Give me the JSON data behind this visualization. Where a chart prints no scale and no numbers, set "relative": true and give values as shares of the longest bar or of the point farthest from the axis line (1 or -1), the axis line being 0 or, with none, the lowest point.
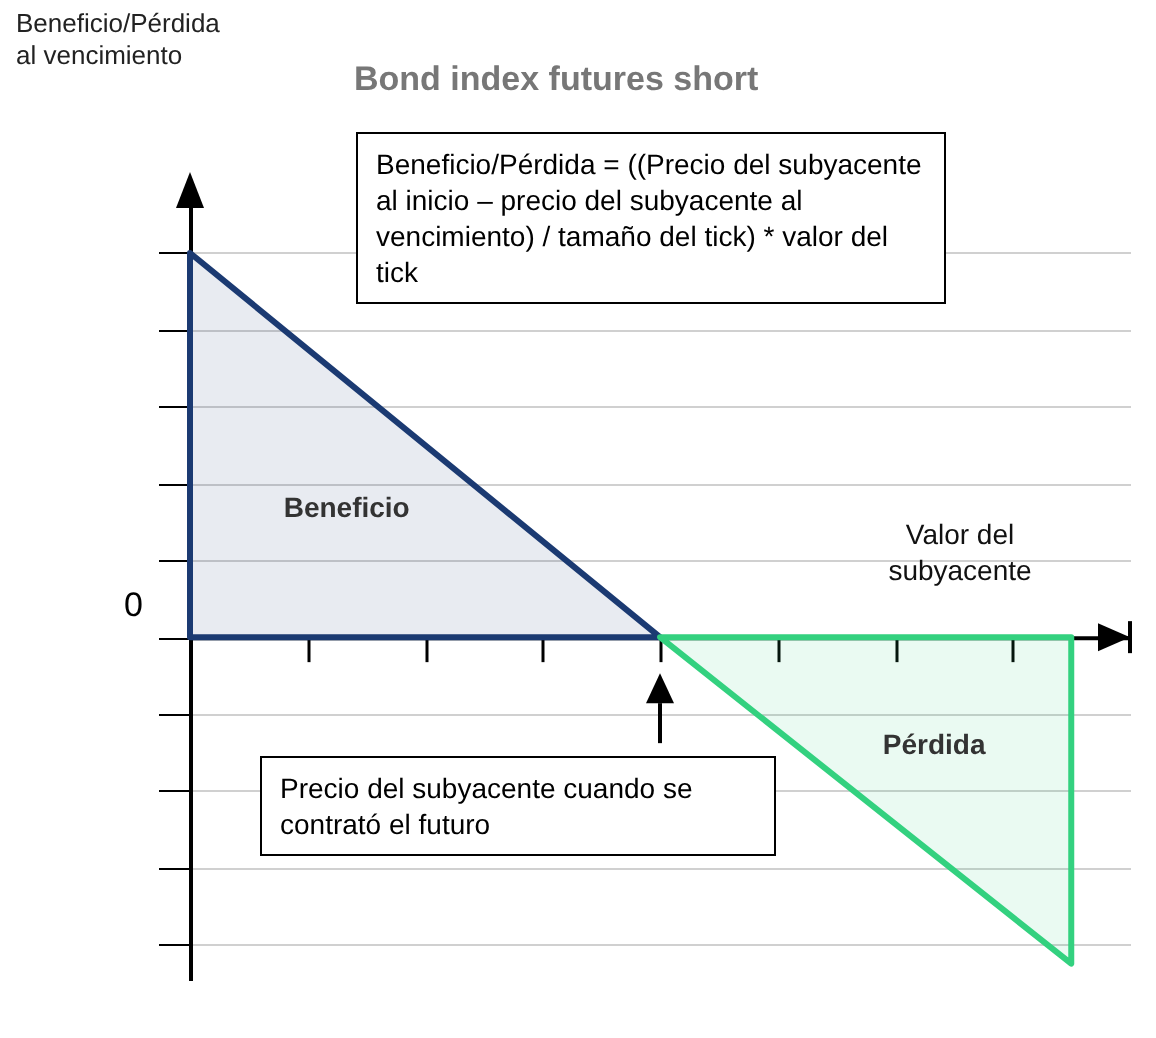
{
  "chart_data": {
    "type": "area",
    "title": "Bond index futures short",
    "xlabel": "Valor del subyacente",
    "relative": true,
    "grid": "y",
    "categories": [
      null,
      null,
      null,
      null,
      null,
      null,
      null,
      null,
      null,
      null,
      null,
      null,
      null,
      null,
      null,
      null
    ],
    "series": [
      {
        "name": "Beneficio",
        "color": "#1b3a72",
        "values": [
          1,
          null,
          null,
          null,
          null,
          null,
          null,
          null,
          0,
          null,
          null,
          null,
          null,
          null,
          null,
          null
        ]
      },
      {
        "name": "Pérdida",
        "color": "#33d17f",
        "values": [
          null,
          null,
          null,
          null,
          null,
          null,
          null,
          null,
          0,
          null,
          null,
          null,
          null,
          null,
          null,
          -0.85
        ]
      }
    ],
    "annotations": [
      "Beneficio/Pérdida al vencimiento",
      "0",
      "Beneficio/Pérdida = ((Precio del subyacente al inicio – precio del subyacente al vencimiento) / tamaño del tick) * valor del tick",
      "Precio del subyacente cuando se contrató el futuro"
    ]
  }
}
